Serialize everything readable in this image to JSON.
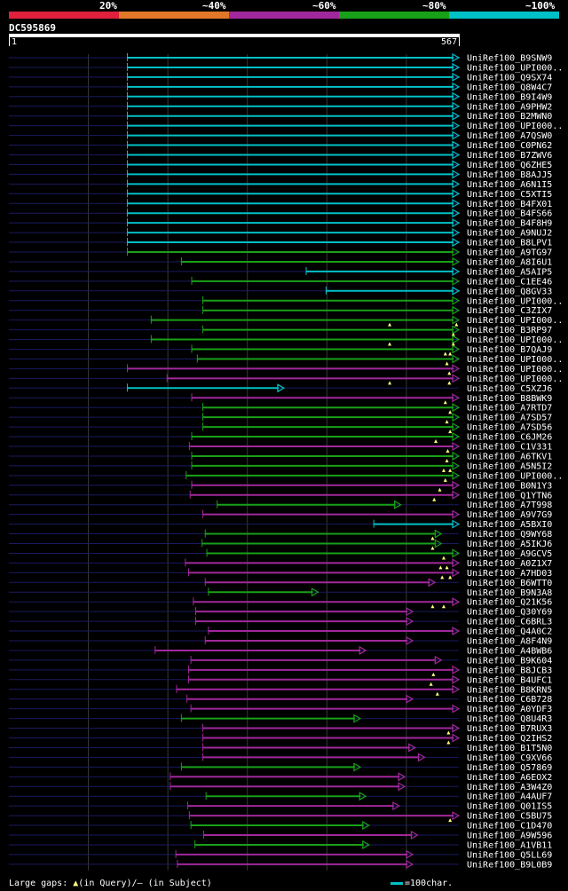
{
  "scale": {
    "labels": [
      "20%",
      "~40%",
      "~60%",
      "~80%",
      "~100%"
    ],
    "colors": [
      "#e0203c",
      "#e07828",
      "#a0289c",
      "#18a018",
      "#00c0c8"
    ]
  },
  "query": {
    "id": "DC595869",
    "start": "1",
    "end": "567",
    "length": 567
  },
  "colors": {
    "cyan": "#00c0c8",
    "green": "#18a018",
    "magenta": "#a0289c",
    "track": "#1a1a60",
    "mark": "#ffff80",
    "grid": "#383838"
  },
  "hits": [
    {
      "name": "UniRef100_B9SNW9",
      "start": 150,
      "end": 567,
      "c": "cyan"
    },
    {
      "name": "UniRef100_UPI000..",
      "start": 150,
      "end": 567,
      "c": "cyan"
    },
    {
      "name": "UniRef100_Q9SX74",
      "start": 150,
      "end": 567,
      "c": "cyan"
    },
    {
      "name": "UniRef100_Q8W4C7",
      "start": 150,
      "end": 567,
      "c": "cyan"
    },
    {
      "name": "UniRef100_B9I4W9",
      "start": 150,
      "end": 567,
      "c": "cyan"
    },
    {
      "name": "UniRef100_A9PHW2",
      "start": 150,
      "end": 567,
      "c": "cyan"
    },
    {
      "name": "UniRef100_B2MWN0",
      "start": 150,
      "end": 567,
      "c": "cyan"
    },
    {
      "name": "UniRef100_UPI000..",
      "start": 150,
      "end": 567,
      "c": "cyan"
    },
    {
      "name": "UniRef100_A7QSW0",
      "start": 150,
      "end": 567,
      "c": "cyan"
    },
    {
      "name": "UniRef100_C0PN62",
      "start": 150,
      "end": 567,
      "c": "cyan"
    },
    {
      "name": "UniRef100_B7ZWV6",
      "start": 150,
      "end": 567,
      "c": "cyan"
    },
    {
      "name": "UniRef100_Q6ZHE5",
      "start": 150,
      "end": 567,
      "c": "cyan"
    },
    {
      "name": "UniRef100_B8AJJ5",
      "start": 150,
      "end": 567,
      "c": "cyan"
    },
    {
      "name": "UniRef100_A6N1I5",
      "start": 150,
      "end": 567,
      "c": "cyan"
    },
    {
      "name": "UniRef100_C5XTI5",
      "start": 150,
      "end": 567,
      "c": "cyan"
    },
    {
      "name": "UniRef100_B4FX01",
      "start": 150,
      "end": 567,
      "c": "cyan"
    },
    {
      "name": "UniRef100_B4FS66",
      "start": 150,
      "end": 567,
      "c": "cyan"
    },
    {
      "name": "UniRef100_B4F8H9",
      "start": 150,
      "end": 567,
      "c": "cyan"
    },
    {
      "name": "UniRef100_A9NUJ2",
      "start": 150,
      "end": 567,
      "c": "cyan"
    },
    {
      "name": "UniRef100_B8LPV1",
      "start": 150,
      "end": 567,
      "c": "cyan"
    },
    {
      "name": "UniRef100_A9TG97",
      "start": 150,
      "end": 567,
      "c": "green"
    },
    {
      "name": "UniRef100_A8I6U1",
      "start": 218,
      "end": 567,
      "c": "green"
    },
    {
      "name": "UniRef100_A5AIP5",
      "start": 375,
      "end": 567,
      "c": "cyan"
    },
    {
      "name": "UniRef100_C1EE46",
      "start": 231,
      "end": 567,
      "c": "green"
    },
    {
      "name": "UniRef100_Q8GV33",
      "start": 400,
      "end": 567,
      "c": "cyan"
    },
    {
      "name": "UniRef100_UPI000..",
      "start": 245,
      "end": 567,
      "c": "green"
    },
    {
      "name": "UniRef100_C3ZIX7",
      "start": 245,
      "end": 567,
      "c": "green"
    },
    {
      "name": "UniRef100_UPI000..",
      "start": 180,
      "end": 567,
      "c": "green",
      "m": [
        480,
        564
      ]
    },
    {
      "name": "UniRef100_B3RP97",
      "start": 245,
      "end": 567,
      "c": "green",
      "m": [
        560
      ]
    },
    {
      "name": "UniRef100_UPI000..",
      "start": 180,
      "end": 567,
      "c": "green",
      "m": [
        480,
        560
      ]
    },
    {
      "name": "UniRef100_B7QAJ9",
      "start": 231,
      "end": 567,
      "c": "green",
      "m": [
        550,
        556
      ]
    },
    {
      "name": "UniRef100_UPI000..",
      "start": 238,
      "end": 567,
      "c": "green",
      "m": [
        552
      ]
    },
    {
      "name": "UniRef100_UPI000..",
      "start": 150,
      "end": 567,
      "c": "magenta",
      "m": [
        555
      ]
    },
    {
      "name": "UniRef100_UPI000..",
      "start": 200,
      "end": 567,
      "c": "magenta",
      "m": [
        480,
        555
      ]
    },
    {
      "name": "UniRef100_C5XZJ6",
      "start": 150,
      "end": 347,
      "c": "cyan"
    },
    {
      "name": "UniRef100_B8BWK9",
      "start": 231,
      "end": 567,
      "c": "magenta",
      "m": [
        550
      ]
    },
    {
      "name": "UniRef100_A7RTD7",
      "start": 245,
      "end": 567,
      "c": "green",
      "m": [
        556
      ]
    },
    {
      "name": "UniRef100_A7SD57",
      "start": 245,
      "end": 567,
      "c": "green",
      "m": [
        552
      ]
    },
    {
      "name": "UniRef100_A7SD56",
      "start": 245,
      "end": 567,
      "c": "green",
      "m": [
        556
      ]
    },
    {
      "name": "UniRef100_C6JM26",
      "start": 231,
      "end": 567,
      "c": "green",
      "m": [
        538
      ]
    },
    {
      "name": "UniRef100_C1V331",
      "start": 228,
      "end": 567,
      "c": "magenta",
      "m": [
        553
      ]
    },
    {
      "name": "UniRef100_A6TKV1",
      "start": 231,
      "end": 567,
      "c": "green",
      "m": [
        552
      ]
    },
    {
      "name": "UniRef100_A5N5I2",
      "start": 231,
      "end": 567,
      "c": "green",
      "m": [
        548,
        556
      ]
    },
    {
      "name": "UniRef100_UPI000..",
      "start": 224,
      "end": 567,
      "c": "green",
      "m": [
        550
      ]
    },
    {
      "name": "UniRef100_B0N1Y3",
      "start": 231,
      "end": 567,
      "c": "magenta",
      "m": [
        543
      ]
    },
    {
      "name": "UniRef100_Q1YTN6",
      "start": 229,
      "end": 567,
      "c": "magenta",
      "m": [
        536
      ]
    },
    {
      "name": "UniRef100_A7T998",
      "start": 263,
      "end": 494,
      "c": "green"
    },
    {
      "name": "UniRef100_A9V7G9",
      "start": 245,
      "end": 567,
      "c": "magenta"
    },
    {
      "name": "UniRef100_A5BXI0",
      "start": 460,
      "end": 567,
      "c": "cyan"
    },
    {
      "name": "UniRef100_Q9WY68",
      "start": 248,
      "end": 545,
      "c": "green",
      "m": [
        534
      ]
    },
    {
      "name": "UniRef100_A5IKJ6",
      "start": 244,
      "end": 545,
      "c": "green",
      "m": [
        534
      ]
    },
    {
      "name": "UniRef100_A9GCV5",
      "start": 250,
      "end": 567,
      "c": "green",
      "m": [
        548
      ]
    },
    {
      "name": "UniRef100_A0Z1X7",
      "start": 223,
      "end": 567,
      "c": "magenta",
      "m": [
        544,
        552
      ]
    },
    {
      "name": "UniRef100_A7HD03",
      "start": 227,
      "end": 567,
      "c": "magenta",
      "m": [
        546,
        556
      ]
    },
    {
      "name": "UniRef100_B6WTT0",
      "start": 248,
      "end": 537,
      "c": "magenta"
    },
    {
      "name": "UniRef100_B9N3A8",
      "start": 252,
      "end": 390,
      "c": "green"
    },
    {
      "name": "UniRef100_Q21K56",
      "start": 233,
      "end": 567,
      "c": "magenta",
      "m": [
        534,
        548
      ]
    },
    {
      "name": "UniRef100_Q30Y69",
      "start": 236,
      "end": 509,
      "c": "magenta"
    },
    {
      "name": "UniRef100_C6BRL3",
      "start": 236,
      "end": 509,
      "c": "magenta"
    },
    {
      "name": "UniRef100_Q4A0C2",
      "start": 252,
      "end": 567,
      "c": "magenta"
    },
    {
      "name": "UniRef100_A8F4N9",
      "start": 248,
      "end": 509,
      "c": "magenta"
    },
    {
      "name": "UniRef100_A4BWB6",
      "start": 185,
      "end": 450,
      "c": "magenta"
    },
    {
      "name": "UniRef100_B9K604",
      "start": 230,
      "end": 545,
      "c": "magenta"
    },
    {
      "name": "UniRef100_B8JCB3",
      "start": 227,
      "end": 567,
      "c": "magenta",
      "m": [
        535
      ]
    },
    {
      "name": "UniRef100_B4UFC1",
      "start": 227,
      "end": 567,
      "c": "magenta",
      "m": [
        532
      ]
    },
    {
      "name": "UniRef100_B8KRN5",
      "start": 212,
      "end": 567,
      "c": "magenta",
      "m": [
        540
      ]
    },
    {
      "name": "UniRef100_C6B728",
      "start": 225,
      "end": 509,
      "c": "magenta"
    },
    {
      "name": "UniRef100_A0YDF3",
      "start": 230,
      "end": 567,
      "c": "magenta"
    },
    {
      "name": "UniRef100_Q8U4R3",
      "start": 218,
      "end": 443,
      "c": "green"
    },
    {
      "name": "UniRef100_B7RUX3",
      "start": 245,
      "end": 567,
      "c": "magenta",
      "m": [
        554
      ]
    },
    {
      "name": "UniRef100_Q2IHS2",
      "start": 245,
      "end": 567,
      "c": "magenta",
      "m": [
        554
      ]
    },
    {
      "name": "UniRef100_B1T5N0",
      "start": 245,
      "end": 512,
      "c": "magenta"
    },
    {
      "name": "UniRef100_C9XV66",
      "start": 245,
      "end": 524,
      "c": "magenta"
    },
    {
      "name": "UniRef100_Q57869",
      "start": 218,
      "end": 443,
      "c": "green"
    },
    {
      "name": "UniRef100_A6EOX2",
      "start": 204,
      "end": 499,
      "c": "magenta"
    },
    {
      "name": "UniRef100_A3W4Z0",
      "start": 204,
      "end": 499,
      "c": "magenta"
    },
    {
      "name": "UniRef100_A4AUF7",
      "start": 249,
      "end": 450,
      "c": "green"
    },
    {
      "name": "UniRef100_Q01IS5",
      "start": 226,
      "end": 492,
      "c": "magenta"
    },
    {
      "name": "UniRef100_C5BU75",
      "start": 228,
      "end": 567,
      "c": "magenta",
      "m": [
        556
      ]
    },
    {
      "name": "UniRef100_C1D470",
      "start": 230,
      "end": 454,
      "c": "green"
    },
    {
      "name": "UniRef100_A9W596",
      "start": 246,
      "end": 515,
      "c": "magenta"
    },
    {
      "name": "UniRef100_A1VB11",
      "start": 235,
      "end": 454,
      "c": "green"
    },
    {
      "name": "UniRef100_Q5LL69",
      "start": 211,
      "end": 509,
      "c": "magenta"
    },
    {
      "name": "UniRef100_B9L0B9",
      "start": 213,
      "end": 509,
      "c": "magenta"
    }
  ],
  "legend": {
    "gaps_text": "Large gaps:",
    "query_glyph": "▲",
    "query_text": "(in Query)/",
    "subject_glyph": "—",
    "subject_text": " (in Subject)",
    "scale_text": "=100char."
  }
}
